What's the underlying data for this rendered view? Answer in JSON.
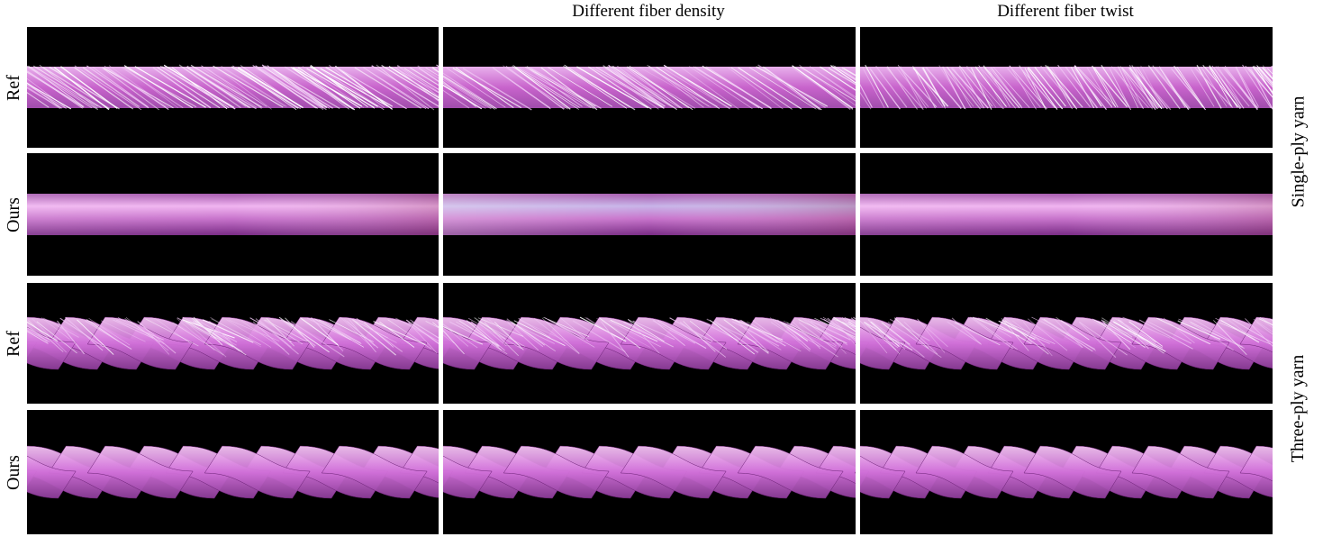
{
  "columns": [
    "",
    "Different fiber density",
    "Different fiber twist"
  ],
  "row_labels": [
    "Ref",
    "Ours",
    "Ref",
    "Ours"
  ],
  "groups": [
    "Single-ply yarn",
    "Three-ply yarn"
  ],
  "colors": {
    "background": "#000000",
    "yarn_pink": "#d070d8",
    "yarn_light": "#f0c8f4",
    "yarn_white": "#ffffff"
  }
}
